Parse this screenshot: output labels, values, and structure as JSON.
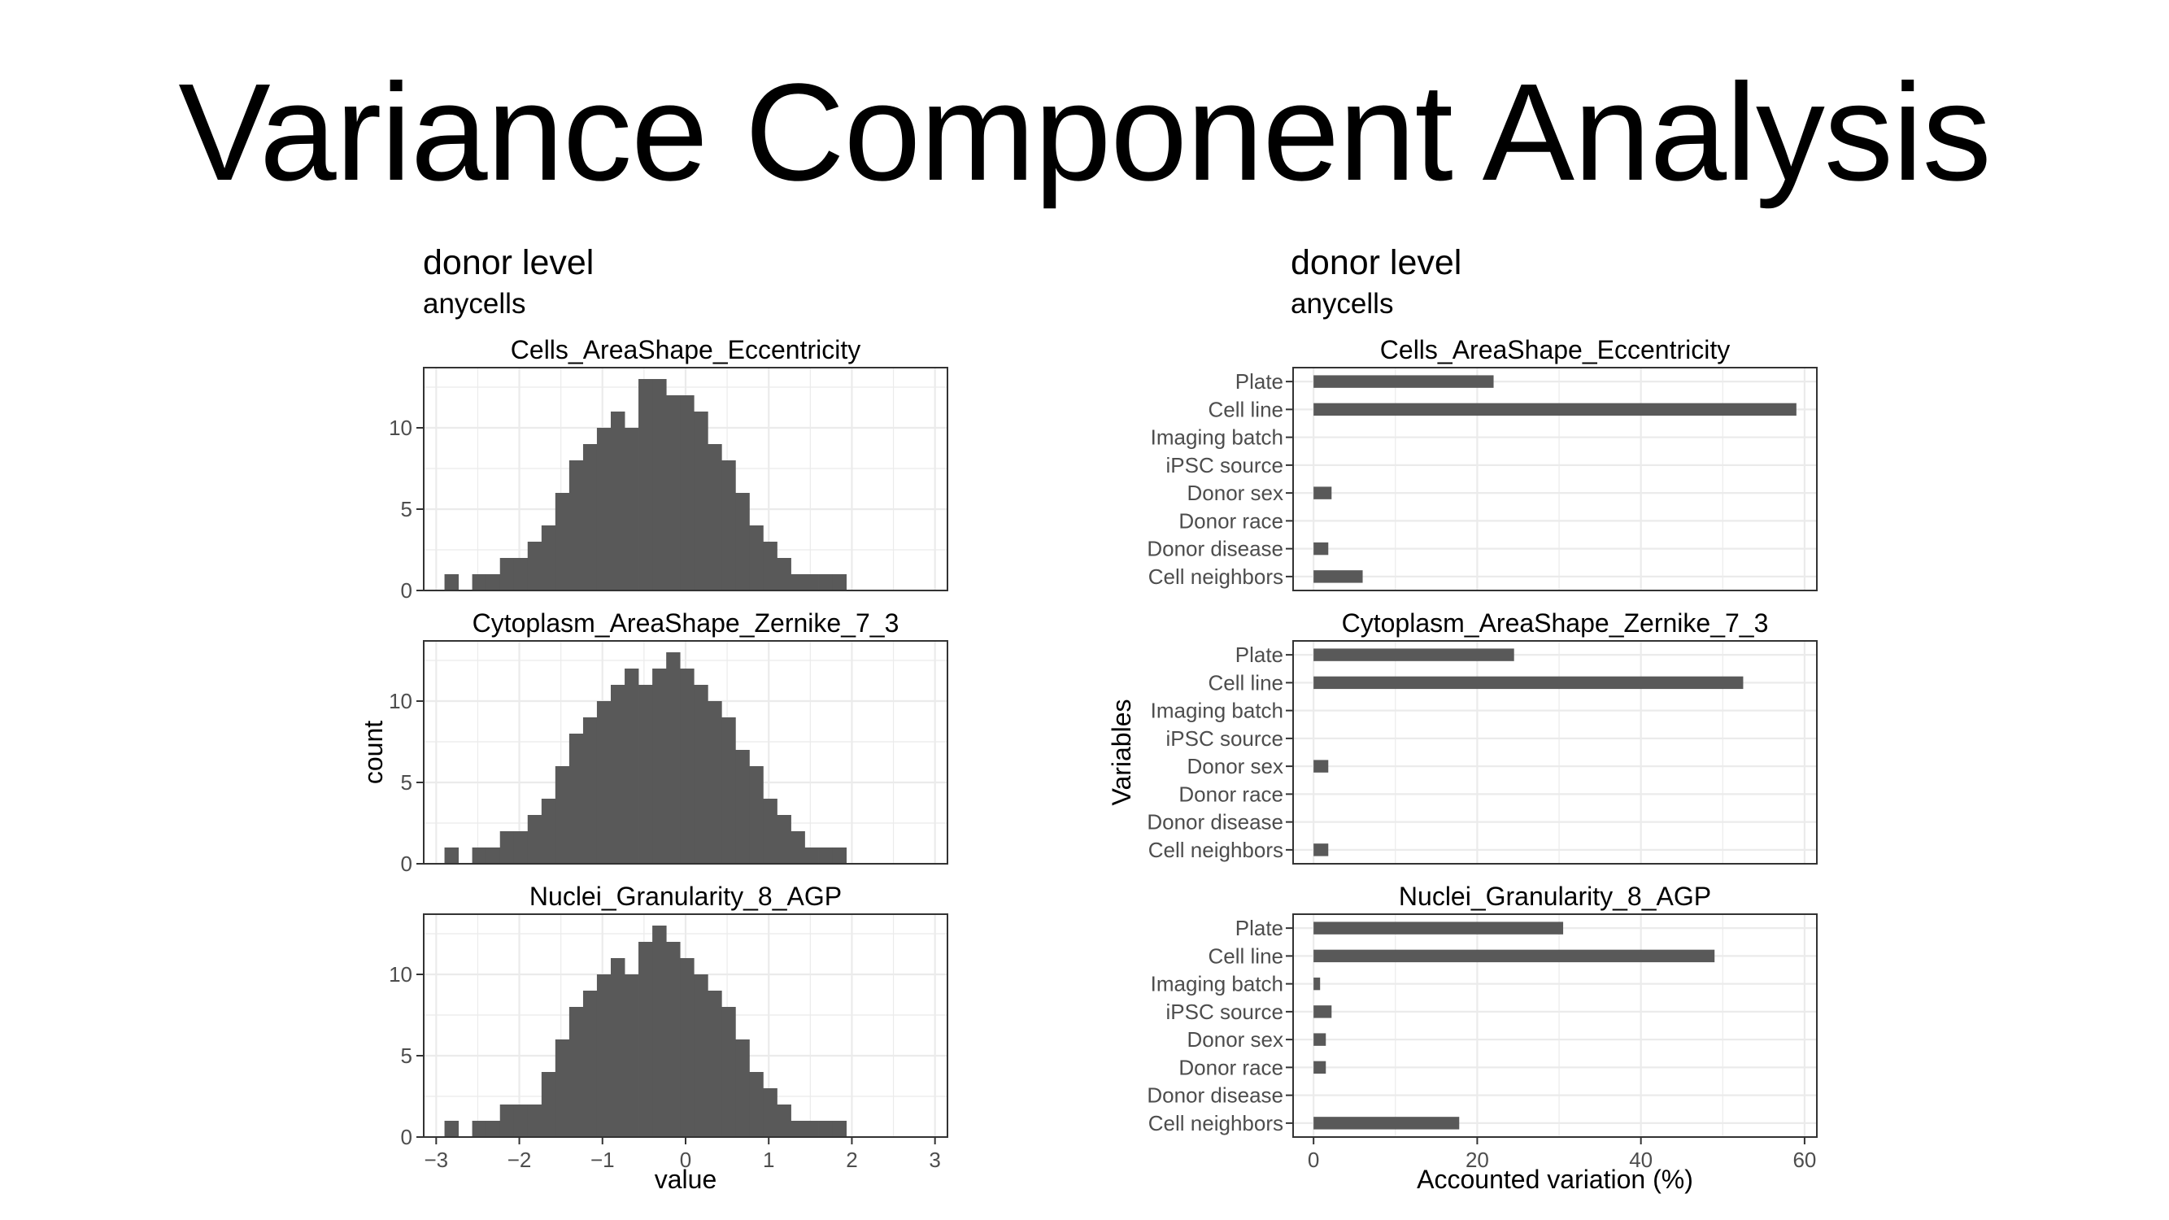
{
  "slide": {
    "title": "Variance Component Analysis"
  },
  "colors": {
    "bar": "#595959",
    "grid": "#ebebeb",
    "panel_border": "#333333",
    "tick_text": "#4d4d4d"
  },
  "chart_data": [
    {
      "type": "bar",
      "subtype": "histogram",
      "title": "donor level",
      "subtitle": "anycells",
      "xlabel": "value",
      "ylabel": "count",
      "xlim": [
        -3.15,
        3.15
      ],
      "x_ticks": [
        -3,
        -2,
        -1,
        0,
        1,
        2,
        3
      ],
      "x_tick_labels": [
        "−3",
        "−2",
        "−1",
        "0",
        "1",
        "2",
        "3"
      ],
      "y_ticks": [
        0,
        5,
        10
      ],
      "ylim": [
        0,
        13.7
      ],
      "grid": true,
      "bin_edges": [
        -2.9,
        -2.733,
        -2.567,
        -2.4,
        -2.233,
        -2.067,
        -1.9,
        -1.733,
        -1.567,
        -1.4,
        -1.233,
        -1.067,
        -0.9,
        -0.733,
        -0.567,
        -0.4,
        -0.233,
        -0.067,
        0.1,
        0.267,
        0.433,
        0.6,
        0.767,
        0.933,
        1.1,
        1.267,
        1.433,
        1.6,
        1.767,
        1.933,
        2.1,
        2.267,
        2.433,
        2.6,
        2.767
      ],
      "panels": [
        {
          "title": "Cells_AreaShape_Eccentricity",
          "counts": [
            1,
            0,
            1,
            1,
            2,
            2,
            3,
            4,
            6,
            8,
            9,
            10,
            11,
            10,
            13,
            13,
            12,
            12,
            11,
            9,
            8,
            6,
            4,
            3,
            2,
            1,
            1,
            1,
            1
          ]
        },
        {
          "title": "Cytoplasm_AreaShape_Zernike_7_3",
          "counts": [
            1,
            0,
            1,
            1,
            2,
            2,
            3,
            4,
            6,
            8,
            9,
            10,
            11,
            12,
            11,
            12,
            13,
            12,
            11,
            10,
            9,
            7,
            6,
            4,
            3,
            2,
            1,
            1,
            1
          ]
        },
        {
          "title": "Nuclei_Granularity_8_AGP",
          "counts": [
            1,
            0,
            1,
            1,
            2,
            2,
            2,
            4,
            6,
            8,
            9,
            10,
            11,
            10,
            12,
            13,
            12,
            11,
            10,
            9,
            8,
            6,
            4,
            3,
            2,
            1,
            1,
            1,
            1
          ]
        }
      ]
    },
    {
      "type": "bar",
      "orientation": "horizontal",
      "title": "donor level",
      "subtitle": "anycells",
      "xlabel": "Accounted variation (%)",
      "ylabel": "Variables",
      "xlim": [
        -2.5,
        61.5
      ],
      "x_ticks": [
        0,
        20,
        40,
        60
      ],
      "grid": true,
      "categories": [
        "Plate",
        "Cell line",
        "Imaging batch",
        "iPSC source",
        "Donor sex",
        "Donor race",
        "Donor disease",
        "Cell neighbors"
      ],
      "panels": [
        {
          "title": "Cells_AreaShape_Eccentricity",
          "values": [
            22,
            59,
            0,
            0,
            2.2,
            0,
            1.8,
            6
          ]
        },
        {
          "title": "Cytoplasm_AreaShape_Zernike_7_3",
          "values": [
            24.5,
            52.5,
            0,
            0,
            1.8,
            0,
            0,
            1.8
          ]
        },
        {
          "title": "Nuclei_Granularity_8_AGP",
          "values": [
            30.5,
            49,
            0.8,
            2.2,
            1.5,
            1.5,
            0,
            17.8
          ]
        }
      ]
    }
  ]
}
